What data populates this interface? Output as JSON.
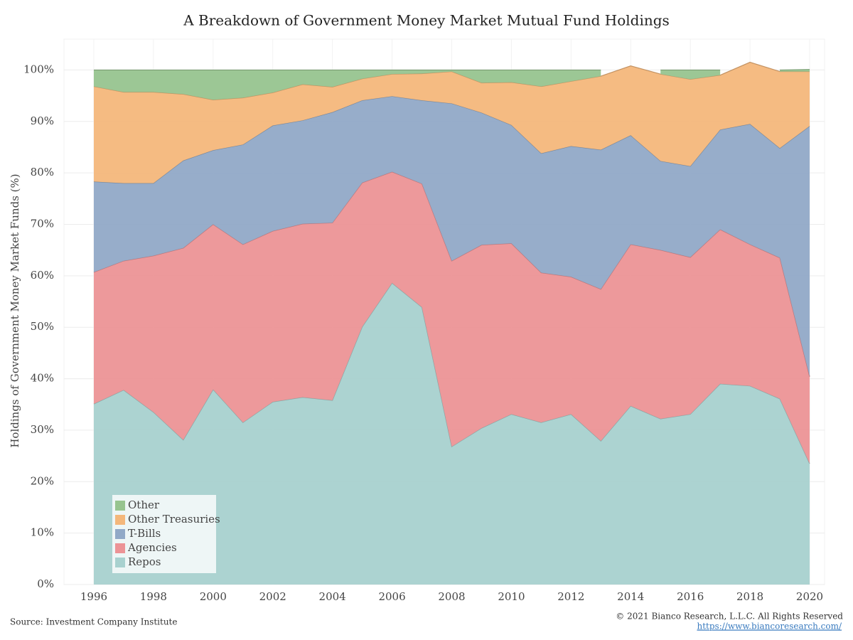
{
  "chart_data": {
    "type": "stacked_area",
    "title": "A Breakdown of Government Money Market Mutual Fund Holdings",
    "y_label": "Holdings of Government Money Market Funds (%)",
    "source": "Source: Investment Company Institute",
    "copyright": "© 2021 Bianco Research, L.L.C. All Rights Reserved",
    "url": "https://www.biancoresearch.com/",
    "x": [
      1996,
      1997,
      1998,
      1999,
      2000,
      2001,
      2002,
      2003,
      2004,
      2005,
      2006,
      2007,
      2008,
      2009,
      2010,
      2011,
      2012,
      2013,
      2014,
      2015,
      2016,
      2017,
      2018,
      2019,
      2020
    ],
    "series": [
      {
        "name": "Repos",
        "color": "#a8d1cf",
        "values": [
          35.1,
          37.8,
          33.5,
          28.1,
          37.9,
          31.5,
          35.5,
          36.4,
          35.8,
          50.1,
          58.6,
          53.9,
          26.8,
          30.4,
          33.1,
          31.5,
          33.1,
          27.9,
          34.7,
          32.2,
          33.1,
          39.0,
          38.6,
          36.1,
          23.5
        ]
      },
      {
        "name": "Agencies",
        "color": "#ec9396",
        "values": [
          25.6,
          25.1,
          30.4,
          37.3,
          32.1,
          34.6,
          33.2,
          33.7,
          34.5,
          28.0,
          21.6,
          24.0,
          36.1,
          35.6,
          33.2,
          29.1,
          26.7,
          29.5,
          31.4,
          32.8,
          30.5,
          30.0,
          27.5,
          27.4,
          16.9
        ]
      },
      {
        "name": "T-Bills",
        "color": "#91a9c7",
        "values": [
          17.6,
          15.1,
          14.1,
          17.0,
          14.4,
          19.4,
          20.5,
          20.1,
          21.5,
          16.0,
          14.7,
          16.2,
          30.6,
          25.7,
          23.0,
          23.2,
          25.4,
          27.1,
          21.2,
          17.3,
          17.7,
          19.4,
          23.4,
          21.3,
          48.7
        ]
      },
      {
        "name": "Other Treasuries",
        "color": "#f4b77b",
        "values": [
          18.5,
          17.7,
          17.7,
          12.9,
          9.8,
          9.1,
          6.4,
          7.0,
          4.9,
          4.2,
          4.3,
          5.2,
          6.2,
          5.8,
          8.3,
          13.0,
          12.6,
          14.3,
          13.5,
          16.9,
          16.9,
          10.6,
          12.0,
          14.9,
          10.6
        ]
      },
      {
        "name": "Other",
        "color": "#97c48f",
        "values": [
          3.2,
          4.3,
          4.3,
          4.7,
          5.8,
          5.4,
          4.4,
          2.8,
          3.3,
          1.7,
          0.8,
          0.7,
          0.3,
          2.5,
          2.4,
          3.2,
          2.2,
          1.2,
          null,
          0.8,
          1.8,
          1.0,
          null,
          0.3,
          0.4
        ]
      }
    ],
    "xlim": [
      1995,
      2020.5
    ],
    "xticks": [
      1996,
      1998,
      2000,
      2002,
      2004,
      2006,
      2008,
      2010,
      2012,
      2014,
      2016,
      2018,
      2020
    ],
    "ylim": [
      0,
      106
    ],
    "yticks": [
      {
        "value": 0,
        "label": "0%"
      },
      {
        "value": 10,
        "label": "10%"
      },
      {
        "value": 20,
        "label": "20%"
      },
      {
        "value": 30,
        "label": "30%"
      },
      {
        "value": 40,
        "label": "40%"
      },
      {
        "value": 50,
        "label": "50%"
      },
      {
        "value": 60,
        "label": "60%"
      },
      {
        "value": 70,
        "label": "70%"
      },
      {
        "value": 80,
        "label": "80%"
      },
      {
        "value": 90,
        "label": "90%"
      },
      {
        "value": 100,
        "label": "100%"
      }
    ],
    "grid": true,
    "legend": "lower left"
  }
}
